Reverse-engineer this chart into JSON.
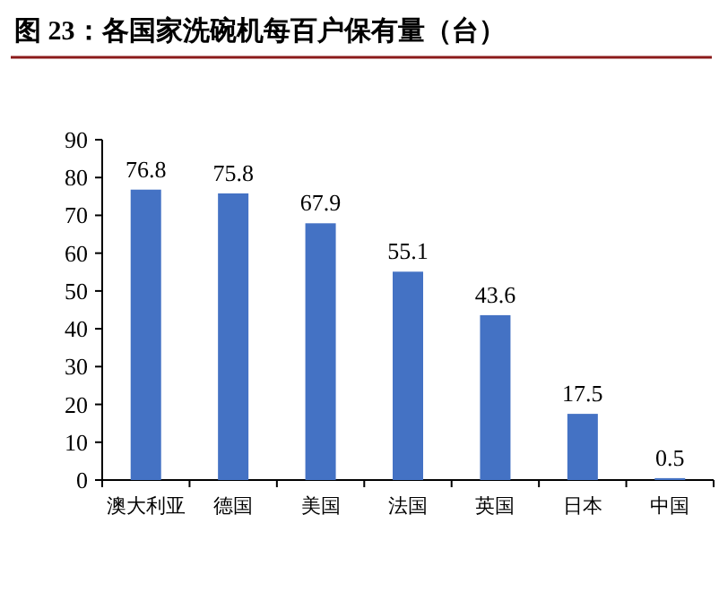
{
  "chart_data": {
    "type": "bar",
    "title": "图 23：各国家洗碗机每百户保有量（台）",
    "categories": [
      "澳大利亚",
      "德国",
      "美国",
      "法国",
      "英国",
      "日本",
      "中国"
    ],
    "values": [
      76.8,
      75.8,
      67.9,
      55.1,
      43.6,
      17.5,
      0.5
    ],
    "color": "#4472c4",
    "ylim": [
      0,
      90
    ],
    "yticks": [
      0,
      10,
      20,
      30,
      40,
      50,
      60,
      70,
      80,
      90
    ],
    "data_labels": true
  }
}
